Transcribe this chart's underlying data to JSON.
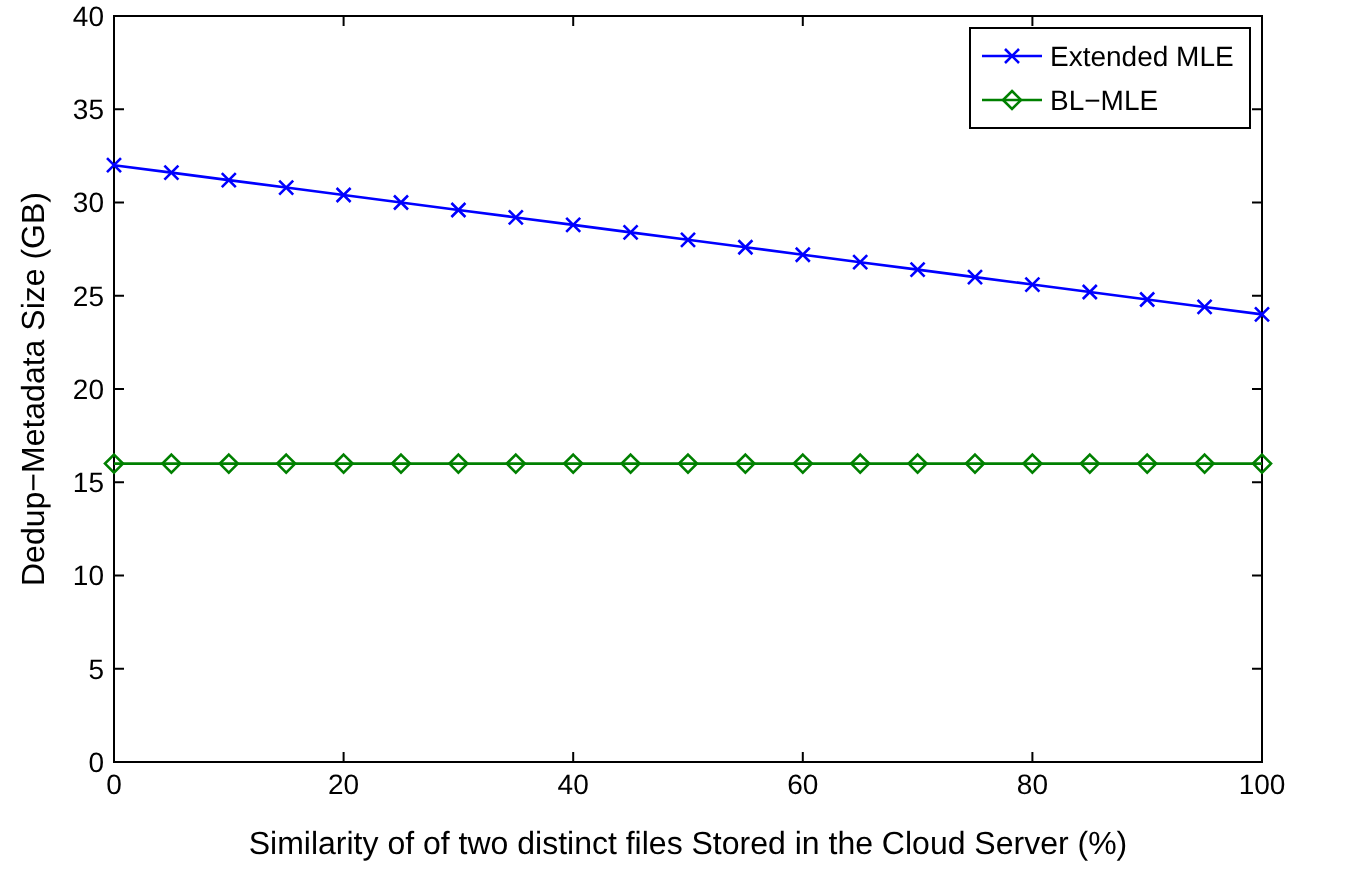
{
  "chart_data": {
    "type": "line",
    "xlabel": "Similarity of of two distinct files Stored in the Cloud Server (%)",
    "ylabel": "Dedup−Metadata Size (GB)",
    "x": [
      0,
      5,
      10,
      15,
      20,
      25,
      30,
      35,
      40,
      45,
      50,
      55,
      60,
      65,
      70,
      75,
      80,
      85,
      90,
      95,
      100
    ],
    "series": [
      {
        "name": "Extended MLE",
        "color": "#0000ff",
        "marker": "cross",
        "values": [
          32,
          31.6,
          31.2,
          30.8,
          30.4,
          30,
          29.6,
          29.2,
          28.8,
          28.4,
          28,
          27.6,
          27.2,
          26.8,
          26.4,
          26,
          25.6,
          25.2,
          24.8,
          24.4,
          24
        ]
      },
      {
        "name": "BL−MLE",
        "color": "#008000",
        "marker": "diamond",
        "values": [
          16,
          16,
          16,
          16,
          16,
          16,
          16,
          16,
          16,
          16,
          16,
          16,
          16,
          16,
          16,
          16,
          16,
          16,
          16,
          16,
          16
        ]
      }
    ],
    "xlim": [
      0,
      100
    ],
    "xticks": [
      0,
      20,
      40,
      60,
      80,
      100
    ],
    "ylim": [
      0,
      40
    ],
    "yticks": [
      0,
      5,
      10,
      15,
      20,
      25,
      30,
      35,
      40
    ],
    "legend": "top right",
    "line_style": "solid"
  }
}
